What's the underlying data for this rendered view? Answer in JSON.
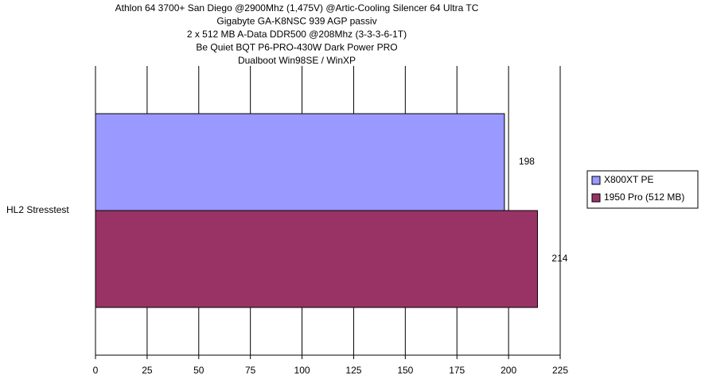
{
  "chart_data": {
    "type": "bar",
    "orientation": "horizontal",
    "title": [
      "Athlon 64 3700+ San Diego @2900Mhz (1,475V) @Artic-Cooling Silencer 64 Ultra TC",
      "Gigabyte GA-K8NSC 939 AGP passiv",
      "2 x 512 MB A-Data DDR500 @208Mhz (3-3-3-6-1T)",
      "Be Quiet BQT P6-PRO-430W Dark Power PRO",
      "Dualboot Win98SE / WinXP"
    ],
    "categories": [
      "HL2 Stresstest"
    ],
    "series": [
      {
        "name": "X800XT PE",
        "color": "#9999ff",
        "values": [
          198
        ]
      },
      {
        "name": "1950 Pro (512 MB)",
        "color": "#993366",
        "values": [
          214
        ]
      }
    ],
    "xlim": [
      0,
      225
    ],
    "xticks": [
      0,
      25,
      50,
      75,
      100,
      125,
      150,
      175,
      200,
      225
    ],
    "grid": true,
    "legend": "right"
  }
}
